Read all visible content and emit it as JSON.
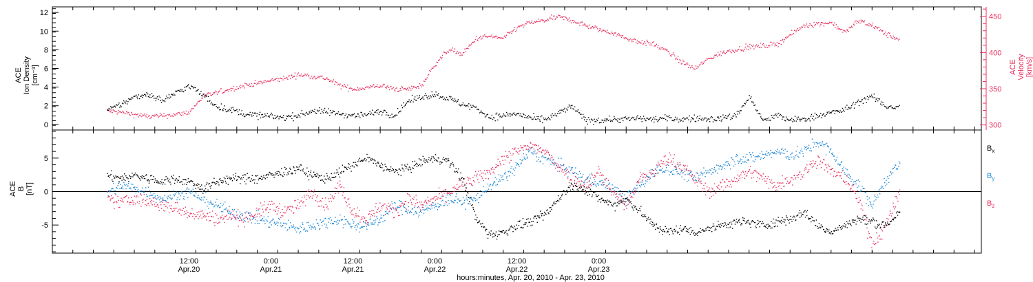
{
  "colors": {
    "density": "#000000",
    "velocity": "#e8305e",
    "bx": "#000000",
    "by": "#1c86d6",
    "bz": "#e8305e",
    "velocity_axis": "#e8305e"
  },
  "chart_data": [
    {
      "type": "scatter",
      "ylabel": [
        "ACE",
        "Ion Density",
        "[cm⁻³]"
      ],
      "ylabel_right": [
        "ACE",
        "Velocity",
        "[km/s]"
      ],
      "ylim": [
        -0.6,
        12.6
      ],
      "ylim_right": [
        293,
        463
      ],
      "yticks": [
        0,
        2,
        4,
        6,
        8,
        10,
        12
      ],
      "yticks_right": [
        300,
        350,
        400,
        450
      ],
      "series": [
        {
          "key": "density",
          "axis": "left",
          "x": [
            0,
            2,
            4,
            6,
            8,
            10,
            12,
            14,
            16,
            18,
            20,
            22,
            24,
            26,
            28,
            30,
            32,
            34,
            36,
            38,
            40,
            42,
            44,
            46,
            48,
            50,
            52,
            54,
            56,
            58,
            60,
            62,
            64,
            66,
            68,
            70,
            72,
            74,
            76,
            78,
            80,
            82,
            84,
            86,
            88,
            90,
            92,
            94,
            96,
            98,
            100,
            102,
            104,
            106,
            108,
            110,
            112,
            114,
            116
          ],
          "values": [
            1.5,
            2.2,
            3.0,
            3.3,
            2.6,
            3.4,
            4.2,
            3.2,
            2.0,
            1.6,
            1.2,
            1.0,
            0.9,
            0.8,
            1.0,
            1.5,
            1.4,
            1.2,
            1.0,
            1.1,
            1.5,
            1.0,
            2.5,
            3.0,
            3.3,
            2.8,
            2.2,
            1.8,
            0.8,
            1.0,
            1.2,
            0.7,
            0.5,
            1.2,
            2.0,
            0.5,
            0.5,
            0.6,
            0.6,
            0.7,
            0.6,
            0.7,
            0.6,
            0.7,
            0.6,
            0.7,
            1.0,
            3.0,
            0.4,
            1.0,
            0.5,
            0.6,
            1.0,
            1.3,
            1.6,
            2.5,
            3.0,
            2.0,
            1.8
          ]
        },
        {
          "key": "velocity",
          "axis": "right",
          "x": [
            0,
            2,
            4,
            6,
            8,
            10,
            12,
            14,
            16,
            18,
            20,
            22,
            24,
            26,
            28,
            30,
            32,
            34,
            36,
            38,
            40,
            42,
            44,
            46,
            48,
            50,
            52,
            54,
            56,
            58,
            60,
            62,
            64,
            66,
            68,
            70,
            72,
            74,
            76,
            78,
            80,
            82,
            84,
            86,
            88,
            90,
            92,
            94,
            96,
            98,
            100,
            102,
            104,
            106,
            108,
            110,
            112,
            114,
            116
          ],
          "values": [
            320,
            318,
            315,
            312,
            313,
            315,
            318,
            340,
            345,
            350,
            355,
            358,
            362,
            365,
            370,
            368,
            365,
            355,
            350,
            352,
            355,
            350,
            350,
            355,
            385,
            405,
            398,
            420,
            423,
            420,
            435,
            442,
            445,
            450,
            445,
            438,
            432,
            428,
            420,
            415,
            412,
            402,
            388,
            378,
            392,
            400,
            405,
            408,
            410,
            412,
            425,
            438,
            440,
            442,
            428,
            445,
            438,
            426,
            418
          ]
        }
      ]
    },
    {
      "type": "scatter",
      "ylabel": [
        "ACE",
        "B",
        "[nT]"
      ],
      "ylim": [
        -9.2,
        9.2
      ],
      "yticks": [
        -5,
        0,
        5
      ],
      "legend": [
        {
          "key": "bx",
          "label": "B",
          "sub": "x"
        },
        {
          "key": "by",
          "label": "B",
          "sub": "y"
        },
        {
          "key": "bz",
          "label": "B",
          "sub": "z"
        }
      ],
      "series": [
        {
          "key": "bx",
          "x": [
            0,
            2,
            4,
            6,
            8,
            10,
            12,
            14,
            16,
            18,
            20,
            22,
            24,
            26,
            28,
            30,
            32,
            34,
            36,
            38,
            40,
            42,
            44,
            46,
            48,
            50,
            52,
            54,
            56,
            58,
            60,
            62,
            64,
            66,
            68,
            70,
            72,
            74,
            76,
            78,
            80,
            82,
            84,
            86,
            88,
            90,
            92,
            94,
            96,
            98,
            100,
            102,
            104,
            106,
            108,
            110,
            112,
            114,
            116
          ],
          "values": [
            2.5,
            2.0,
            2.5,
            2.0,
            1.5,
            2.0,
            1.5,
            0.5,
            1.5,
            2.0,
            2.0,
            2.0,
            2.5,
            3.0,
            3.5,
            2.5,
            2.0,
            3.0,
            4.0,
            5.0,
            4.0,
            3.0,
            3.5,
            4.5,
            5.0,
            4.5,
            2.0,
            -4.0,
            -6.5,
            -6.0,
            -5.0,
            -4.5,
            -3.5,
            -1.0,
            1.0,
            0.5,
            -1.0,
            -2.0,
            -1.0,
            -3.0,
            -5.0,
            -6.0,
            -5.5,
            -6.0,
            -5.5,
            -5.0,
            -4.5,
            -4.5,
            -5.0,
            -4.5,
            -4.0,
            -3.0,
            -5.0,
            -6.0,
            -5.0,
            -4.0,
            -4.5,
            -5.0,
            -3.0
          ]
        },
        {
          "key": "by",
          "x": [
            0,
            2,
            4,
            6,
            8,
            10,
            12,
            14,
            16,
            18,
            20,
            22,
            24,
            26,
            28,
            30,
            32,
            34,
            36,
            38,
            40,
            42,
            44,
            46,
            48,
            50,
            52,
            54,
            56,
            58,
            60,
            62,
            64,
            66,
            68,
            70,
            72,
            74,
            76,
            78,
            80,
            82,
            84,
            86,
            88,
            90,
            92,
            94,
            96,
            98,
            100,
            102,
            104,
            106,
            108,
            110,
            112,
            114,
            116
          ],
          "values": [
            0.0,
            1.0,
            0.5,
            0.0,
            -1.0,
            -0.5,
            0.0,
            -1.0,
            -2.0,
            -3.0,
            -3.5,
            -4.0,
            -4.5,
            -5.0,
            -5.5,
            -5.0,
            -4.5,
            -4.0,
            -5.0,
            -5.0,
            -4.0,
            -2.0,
            -2.5,
            -3.0,
            -2.0,
            -1.0,
            -1.5,
            -1.0,
            1.0,
            2.0,
            4.0,
            6.0,
            5.0,
            4.0,
            3.0,
            2.0,
            1.5,
            0.5,
            -1.0,
            1.0,
            3.0,
            3.5,
            3.0,
            2.0,
            3.0,
            4.0,
            5.0,
            5.0,
            5.5,
            6.0,
            5.5,
            6.0,
            7.5,
            6.0,
            3.0,
            1.0,
            -2.0,
            2.0,
            4.0
          ]
        },
        {
          "key": "bz",
          "x": [
            0,
            2,
            4,
            6,
            8,
            10,
            12,
            14,
            16,
            18,
            20,
            22,
            24,
            26,
            28,
            30,
            32,
            34,
            36,
            38,
            40,
            42,
            44,
            46,
            48,
            50,
            52,
            54,
            56,
            58,
            60,
            62,
            64,
            66,
            68,
            70,
            72,
            74,
            76,
            78,
            80,
            82,
            84,
            86,
            88,
            90,
            92,
            94,
            96,
            98,
            100,
            102,
            104,
            106,
            108,
            110,
            112,
            114,
            116
          ],
          "values": [
            -1.0,
            -1.5,
            -1.0,
            -1.5,
            -2.0,
            -2.5,
            -3.0,
            -3.5,
            -4.0,
            -3.5,
            -4.0,
            -3.0,
            -2.0,
            -3.0,
            -2.0,
            0.0,
            -2.0,
            1.0,
            -3.0,
            -4.0,
            -2.0,
            -3.0,
            -1.0,
            -2.0,
            -1.0,
            0.0,
            1.0,
            2.0,
            3.0,
            5.0,
            6.0,
            7.0,
            6.0,
            4.0,
            2.0,
            1.0,
            3.0,
            0.0,
            -2.0,
            2.0,
            3.0,
            5.0,
            4.0,
            2.0,
            0.0,
            1.0,
            2.0,
            3.0,
            2.0,
            1.0,
            2.0,
            3.0,
            5.0,
            3.0,
            2.0,
            -1.0,
            -8.0,
            -5.0,
            0.0
          ]
        }
      ]
    }
  ],
  "xaxis": {
    "range_hours": [
      -8,
      128
    ],
    "major_ticks": [
      {
        "hour": 12,
        "time": "12:00",
        "date": "Apr.20"
      },
      {
        "hour": 24,
        "time": "0:00",
        "date": "Apr.21"
      },
      {
        "hour": 36,
        "time": "12:00",
        "date": "Apr.21"
      },
      {
        "hour": 48,
        "time": "0:00",
        "date": "Apr.22"
      },
      {
        "hour": 60,
        "time": "12:00",
        "date": "Apr.22"
      },
      {
        "hour": 72,
        "time": "0:00",
        "date": "Apr.23"
      }
    ],
    "title": "hours:minutes, Apr. 20, 2010 - Apr. 23, 2010"
  }
}
